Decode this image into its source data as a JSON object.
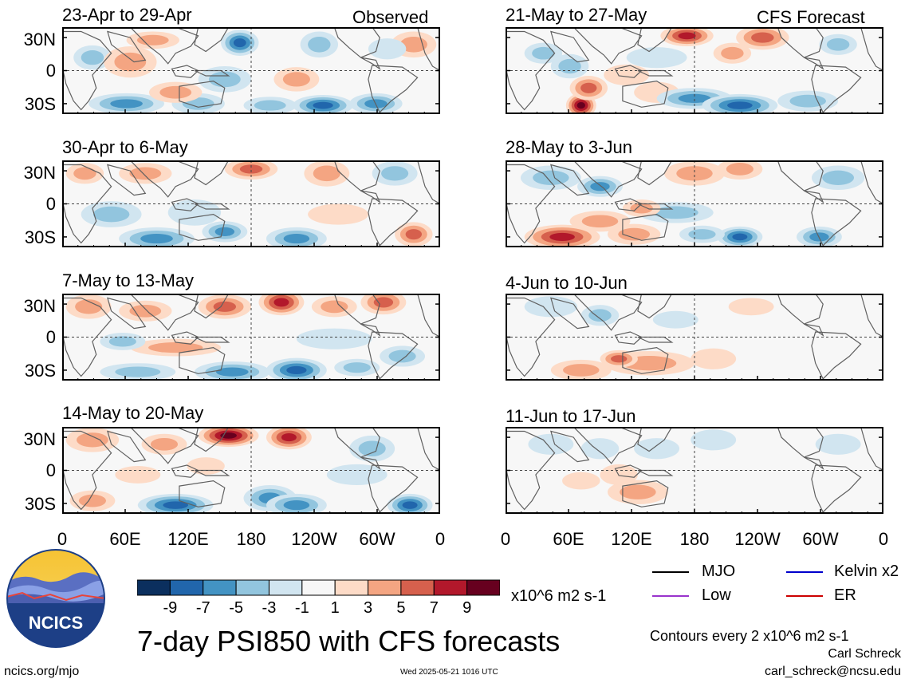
{
  "chart_data": {
    "type": "heatmap",
    "title": "7-day PSI850 with CFS forecasts",
    "units": "x10^6 m2 s-1",
    "y_tick_labels": [
      "30N",
      "0",
      "30S"
    ],
    "x_tick_labels": [
      "0",
      "60E",
      "120E",
      "180",
      "120W",
      "60W",
      "0"
    ],
    "colorbar": {
      "ticks": [
        "-9",
        "-7",
        "-5",
        "-3",
        "-1",
        "1",
        "3",
        "5",
        "7",
        "9"
      ],
      "levels": [
        -11,
        -9,
        -7,
        -5,
        -3,
        -1,
        1,
        3,
        5,
        7,
        9,
        11
      ],
      "colors": [
        "#0b2f5e",
        "#2166ac",
        "#4393c3",
        "#92c5de",
        "#d1e5f0",
        "#f7f7f7",
        "#fddbc7",
        "#f4a582",
        "#d6604d",
        "#b2182b",
        "#67001f"
      ]
    },
    "panels": [
      {
        "col": "left",
        "row": 1,
        "title": "23-Apr to 29-Apr",
        "label": "Observed"
      },
      {
        "col": "left",
        "row": 2,
        "title": "30-Apr to 6-May",
        "label": ""
      },
      {
        "col": "left",
        "row": 3,
        "title": "7-May to 13-May",
        "label": ""
      },
      {
        "col": "left",
        "row": 4,
        "title": "14-May to 20-May",
        "label": ""
      },
      {
        "col": "right",
        "row": 1,
        "title": "21-May to 27-May",
        "label": "CFS Forecast"
      },
      {
        "col": "right",
        "row": 2,
        "title": "28-May to 3-Jun",
        "label": ""
      },
      {
        "col": "right",
        "row": 3,
        "title": "4-Jun to 10-Jun",
        "label": ""
      },
      {
        "col": "right",
        "row": 4,
        "title": "11-Jun to 17-Jun",
        "label": ""
      }
    ],
    "blobs": [
      [
        [
          0.08,
          0.35,
          0.05,
          0.14,
          -3
        ],
        [
          0.18,
          0.4,
          0.07,
          0.18,
          3
        ],
        [
          0.24,
          0.15,
          0.07,
          0.1,
          3
        ],
        [
          0.47,
          0.18,
          0.05,
          0.15,
          -7
        ],
        [
          0.68,
          0.2,
          0.05,
          0.15,
          -4
        ],
        [
          0.62,
          0.6,
          0.06,
          0.14,
          3
        ],
        [
          0.43,
          0.6,
          0.07,
          0.15,
          -3
        ],
        [
          0.17,
          0.88,
          0.1,
          0.12,
          -5
        ],
        [
          0.36,
          0.88,
          0.07,
          0.12,
          -4
        ],
        [
          0.3,
          0.75,
          0.07,
          0.12,
          4
        ],
        [
          0.69,
          0.9,
          0.08,
          0.12,
          -7
        ],
        [
          0.55,
          0.9,
          0.07,
          0.1,
          -4
        ],
        [
          0.83,
          0.88,
          0.07,
          0.12,
          -5
        ],
        [
          0.93,
          0.2,
          0.06,
          0.15,
          3
        ],
        [
          0.86,
          0.25,
          0.05,
          0.12,
          -2
        ]
      ],
      [
        [
          0.06,
          0.15,
          0.05,
          0.12,
          3
        ],
        [
          0.22,
          0.15,
          0.07,
          0.12,
          3
        ],
        [
          0.5,
          0.1,
          0.07,
          0.12,
          5
        ],
        [
          0.7,
          0.15,
          0.06,
          0.15,
          3
        ],
        [
          0.88,
          0.15,
          0.06,
          0.14,
          -4
        ],
        [
          0.13,
          0.62,
          0.08,
          0.15,
          -3
        ],
        [
          0.25,
          0.9,
          0.1,
          0.13,
          -6
        ],
        [
          0.43,
          0.82,
          0.06,
          0.12,
          -5
        ],
        [
          0.62,
          0.9,
          0.08,
          0.13,
          -6
        ],
        [
          0.93,
          0.85,
          0.05,
          0.14,
          5
        ],
        [
          0.73,
          0.62,
          0.08,
          0.12,
          2
        ],
        [
          0.35,
          0.6,
          0.07,
          0.15,
          -2
        ]
      ],
      [
        [
          0.07,
          0.15,
          0.06,
          0.14,
          4
        ],
        [
          0.22,
          0.2,
          0.07,
          0.12,
          3
        ],
        [
          0.43,
          0.15,
          0.07,
          0.14,
          5
        ],
        [
          0.58,
          0.1,
          0.06,
          0.15,
          8
        ],
        [
          0.85,
          0.1,
          0.06,
          0.14,
          6
        ],
        [
          0.72,
          0.15,
          0.06,
          0.12,
          3
        ],
        [
          0.3,
          0.62,
          0.12,
          0.1,
          4
        ],
        [
          0.16,
          0.55,
          0.06,
          0.1,
          -3
        ],
        [
          0.2,
          0.9,
          0.1,
          0.1,
          -4
        ],
        [
          0.45,
          0.9,
          0.1,
          0.12,
          -5
        ],
        [
          0.62,
          0.88,
          0.08,
          0.14,
          -8
        ],
        [
          0.78,
          0.85,
          0.06,
          0.1,
          -4
        ],
        [
          0.72,
          0.52,
          0.1,
          0.12,
          -2
        ],
        [
          0.9,
          0.72,
          0.06,
          0.12,
          -3
        ]
      ],
      [
        [
          0.08,
          0.15,
          0.07,
          0.14,
          4
        ],
        [
          0.27,
          0.2,
          0.06,
          0.12,
          3
        ],
        [
          0.44,
          0.1,
          0.08,
          0.13,
          9
        ],
        [
          0.6,
          0.12,
          0.06,
          0.14,
          7
        ],
        [
          0.82,
          0.25,
          0.06,
          0.15,
          -3
        ],
        [
          0.2,
          0.55,
          0.06,
          0.1,
          2
        ],
        [
          0.38,
          0.45,
          0.05,
          0.1,
          2
        ],
        [
          0.08,
          0.85,
          0.06,
          0.12,
          4
        ],
        [
          0.3,
          0.9,
          0.1,
          0.13,
          -8
        ],
        [
          0.55,
          0.82,
          0.07,
          0.15,
          -6
        ],
        [
          0.62,
          0.9,
          0.08,
          0.13,
          -5
        ],
        [
          0.92,
          0.9,
          0.06,
          0.13,
          -8
        ],
        [
          0.78,
          0.55,
          0.08,
          0.12,
          -2
        ]
      ],
      [
        [
          0.1,
          0.3,
          0.05,
          0.12,
          -3
        ],
        [
          0.17,
          0.45,
          0.05,
          0.14,
          -4
        ],
        [
          0.48,
          0.1,
          0.07,
          0.12,
          8
        ],
        [
          0.68,
          0.12,
          0.07,
          0.14,
          6
        ],
        [
          0.6,
          0.3,
          0.05,
          0.12,
          3
        ],
        [
          0.88,
          0.2,
          0.05,
          0.12,
          -3
        ],
        [
          0.4,
          0.35,
          0.08,
          0.12,
          -2
        ],
        [
          0.2,
          0.9,
          0.04,
          0.14,
          9
        ],
        [
          0.22,
          0.7,
          0.05,
          0.14,
          5
        ],
        [
          0.4,
          0.75,
          0.06,
          0.12,
          2
        ],
        [
          0.5,
          0.82,
          0.1,
          0.12,
          -5
        ],
        [
          0.62,
          0.9,
          0.1,
          0.13,
          -8
        ],
        [
          0.8,
          0.85,
          0.08,
          0.12,
          -4
        ],
        [
          0.32,
          0.55,
          0.06,
          0.12,
          2
        ]
      ],
      [
        [
          0.12,
          0.2,
          0.08,
          0.14,
          -4
        ],
        [
          0.25,
          0.3,
          0.06,
          0.12,
          -5
        ],
        [
          0.5,
          0.15,
          0.08,
          0.14,
          4
        ],
        [
          0.62,
          0.1,
          0.06,
          0.12,
          3
        ],
        [
          0.88,
          0.2,
          0.07,
          0.14,
          -3
        ],
        [
          0.15,
          0.88,
          0.1,
          0.14,
          8
        ],
        [
          0.34,
          0.85,
          0.07,
          0.12,
          4
        ],
        [
          0.45,
          0.6,
          0.1,
          0.12,
          -4
        ],
        [
          0.62,
          0.88,
          0.06,
          0.12,
          -7
        ],
        [
          0.52,
          0.85,
          0.06,
          0.1,
          -4
        ],
        [
          0.83,
          0.88,
          0.06,
          0.12,
          -5
        ],
        [
          0.36,
          0.55,
          0.05,
          0.1,
          3
        ],
        [
          0.25,
          0.7,
          0.08,
          0.12,
          3
        ]
      ],
      [
        [
          0.12,
          0.15,
          0.07,
          0.12,
          -2
        ],
        [
          0.25,
          0.25,
          0.05,
          0.12,
          -3
        ],
        [
          0.45,
          0.3,
          0.06,
          0.1,
          -2
        ],
        [
          0.38,
          0.8,
          0.12,
          0.14,
          4
        ],
        [
          0.2,
          0.88,
          0.08,
          0.12,
          3
        ],
        [
          0.55,
          0.75,
          0.06,
          0.12,
          2
        ],
        [
          0.3,
          0.75,
          0.05,
          0.1,
          5
        ],
        [
          0.65,
          0.15,
          0.06,
          0.1,
          2
        ]
      ],
      [
        [
          0.12,
          0.2,
          0.06,
          0.12,
          -2
        ],
        [
          0.25,
          0.25,
          0.05,
          0.12,
          -2
        ],
        [
          0.4,
          0.25,
          0.06,
          0.12,
          -2
        ],
        [
          0.55,
          0.15,
          0.06,
          0.12,
          -2
        ],
        [
          0.35,
          0.75,
          0.08,
          0.14,
          3
        ],
        [
          0.3,
          0.55,
          0.05,
          0.12,
          2
        ],
        [
          0.2,
          0.62,
          0.05,
          0.1,
          2
        ],
        [
          0.88,
          0.2,
          0.06,
          0.12,
          -2
        ]
      ]
    ]
  },
  "headline": "7-day PSI850 with CFS forecasts",
  "logo_text": "NCICS",
  "legend": {
    "mjo": "MJO",
    "low": "Low",
    "kelvin": "Kelvin x2",
    "er": "ER",
    "mjo_color": "#000000",
    "low_color": "#9933cc",
    "kelvin_color": "#0000cc",
    "er_color": "#cc0000"
  },
  "contours_note": "Contours every 2 x10^6 m2 s-1",
  "author": "Carl Schreck",
  "email": "carl_schreck@ncsu.edu",
  "website": "ncics.org/mjo",
  "timestamp": "Wed 2025-05-21 1016 UTC"
}
